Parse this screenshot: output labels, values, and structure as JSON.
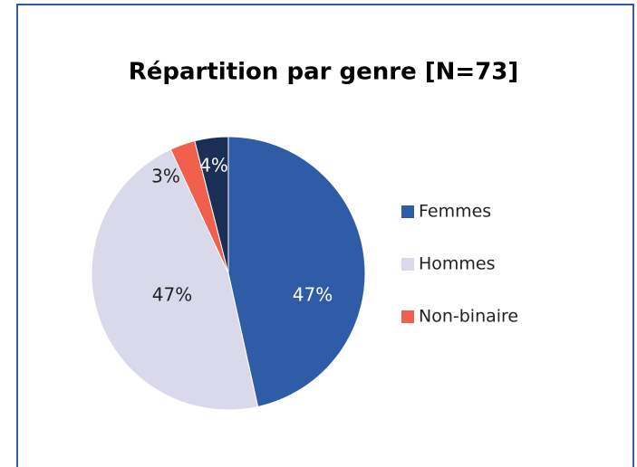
{
  "chart_data": {
    "type": "pie",
    "title": "Répartition par genre [N=73]",
    "categories": [
      "Femmes",
      "Hommes",
      "Non-binaire",
      null
    ],
    "values": [
      47,
      47,
      3,
      4
    ],
    "value_labels": [
      "47%",
      "47%",
      "3%",
      "4%"
    ],
    "colors": [
      "#2E5CA6",
      "#D9D9EB",
      "#F0604C",
      "#1A2E56"
    ],
    "legend": "right"
  }
}
